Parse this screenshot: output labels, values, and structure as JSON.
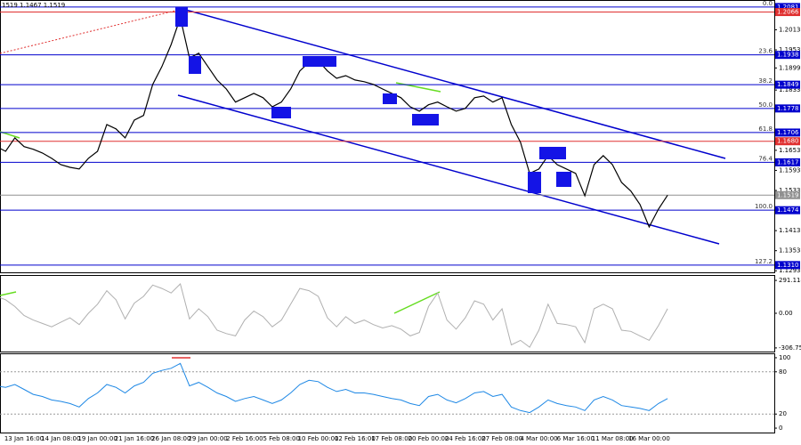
{
  "chart_data": [
    {
      "type": "line",
      "title": "1519 1.1467 1.1519",
      "color": "#000000",
      "categories": [
        null,
        null,
        null,
        "13 Jan 16:00",
        null,
        null,
        null,
        "14 Jan 08:00",
        null,
        null,
        null,
        "19 Jan 00:00",
        null,
        null,
        null,
        "21 Jan 16:00",
        null,
        null,
        null,
        "26 Jan 08:00",
        null,
        null,
        null,
        "29 Jan 00:00",
        null,
        null,
        null,
        "2 Feb 16:00",
        null,
        null,
        null,
        "5 Feb 08:00",
        null,
        null,
        null,
        "10 Feb 00:00",
        null,
        null,
        null,
        "12 Feb 16:00",
        null,
        null,
        null,
        "17 Feb 08:00",
        null,
        null,
        null,
        "20 Feb 00:00",
        null,
        null,
        null,
        "24 Feb 16:00",
        null,
        null,
        null,
        "27 Feb 08:00",
        null,
        null,
        null,
        "4 Mar 00:00",
        null,
        null,
        null,
        "6 Mar 16:00",
        null,
        null,
        null,
        "11 Mar 08:00",
        null,
        null,
        null,
        "16 Mar 00:00",
        null,
        null
      ],
      "values": [
        1.1664,
        1.165,
        1.169,
        1.1664,
        1.1656,
        1.1645,
        1.1629,
        1.161,
        1.1602,
        1.1597,
        1.1629,
        1.165,
        1.173,
        1.1717,
        1.169,
        1.1743,
        1.1757,
        1.185,
        1.1903,
        1.1969,
        1.2049,
        1.1929,
        1.1943,
        1.1903,
        1.1863,
        1.1836,
        1.1797,
        1.181,
        1.1823,
        1.181,
        1.1783,
        1.1797,
        1.1836,
        1.189,
        1.1916,
        1.1921,
        1.189,
        1.1868,
        1.1876,
        1.1863,
        1.1858,
        1.185,
        1.1836,
        1.1823,
        1.181,
        1.1783,
        1.177,
        1.1789,
        1.1797,
        1.1783,
        1.177,
        1.1778,
        1.181,
        1.1815,
        1.1797,
        1.181,
        1.173,
        1.1677,
        1.1584,
        1.1597,
        1.1637,
        1.161,
        1.1597,
        1.1584,
        1.1517,
        1.161,
        1.1637,
        1.161,
        1.1557,
        1.1531,
        1.1491,
        1.1424,
        1.1477,
        1.1519
      ],
      "ylim": [
        1.1291,
        1.2102
      ],
      "yticks": [
        1.2013,
        1.1953,
        1.1899,
        1.1833,
        1.1653,
        1.1593,
        1.1533,
        1.1413,
        1.1353,
        1.1293
      ],
      "levels": [
        {
          "price": 1.2081,
          "fib": "0.0",
          "color": "#0000cd"
        },
        {
          "price": 1.2066,
          "color": "#e03030"
        },
        {
          "price": 1.1938,
          "fib": "23.6",
          "color": "#0000cd"
        },
        {
          "price": 1.1849,
          "fib": "38.2",
          "color": "#0000cd"
        },
        {
          "price": 1.1778,
          "fib": "50.0",
          "color": "#0000cd"
        },
        {
          "price": 1.1706,
          "fib": "61.8",
          "color": "#0000cd"
        },
        {
          "price": {
            "value": 1.168,
            "label": "1.1680"
          },
          "color": "#e03030"
        },
        {
          "price": 1.1617,
          "fib": "76.4",
          "color": "#0000cd"
        },
        {
          "price": 1.1519,
          "color": "#909090"
        },
        {
          "price": 1.1474,
          "fib": "100.0",
          "color": "#0000cd"
        },
        {
          "price": {
            "value": 1.131,
            "label": "1.1310"
          },
          "fib": "127.2",
          "color": "#0000cd"
        }
      ]
    },
    {
      "type": "line",
      "color": "#b0b0b0",
      "values": [
        150,
        120,
        60,
        -20,
        -60,
        -90,
        -120,
        -80,
        -40,
        -100,
        0,
        80,
        200,
        120,
        -50,
        90,
        150,
        250,
        220,
        180,
        260,
        -50,
        40,
        -30,
        -150,
        -180,
        -200,
        -60,
        20,
        -30,
        -120,
        -60,
        80,
        220,
        200,
        150,
        -40,
        -120,
        -30,
        -90,
        -60,
        -100,
        -130,
        -110,
        -140,
        -200,
        -170,
        60,
        180,
        -60,
        -140,
        -40,
        110,
        80,
        -60,
        40,
        -280,
        -240,
        -300,
        -150,
        80,
        -90,
        -100,
        -120,
        -260,
        40,
        80,
        40,
        -150,
        -160,
        -200,
        -240,
        -110,
        40
      ],
      "ylim": [
        -339,
        331
      ],
      "yticks": [
        291.1149,
        {
          "value": 0,
          "label": "0.00"
        },
        -306.75
      ]
    },
    {
      "type": "line",
      "color": "#1e88e5",
      "values": [
        60,
        58,
        62,
        55,
        48,
        45,
        40,
        38,
        35,
        30,
        42,
        50,
        62,
        58,
        50,
        60,
        65,
        78,
        82,
        85,
        92,
        60,
        65,
        58,
        50,
        45,
        38,
        42,
        45,
        40,
        35,
        40,
        50,
        62,
        68,
        66,
        58,
        52,
        55,
        50,
        50,
        48,
        45,
        42,
        40,
        35,
        32,
        45,
        48,
        40,
        36,
        42,
        50,
        52,
        45,
        48,
        30,
        25,
        22,
        30,
        40,
        35,
        32,
        30,
        25,
        40,
        45,
        40,
        32,
        30,
        28,
        25,
        35,
        42
      ],
      "ylim": [
        -5,
        105
      ],
      "yticks": [
        100,
        80,
        20,
        0
      ],
      "grid_dotted": [
        80,
        20
      ]
    }
  ]
}
